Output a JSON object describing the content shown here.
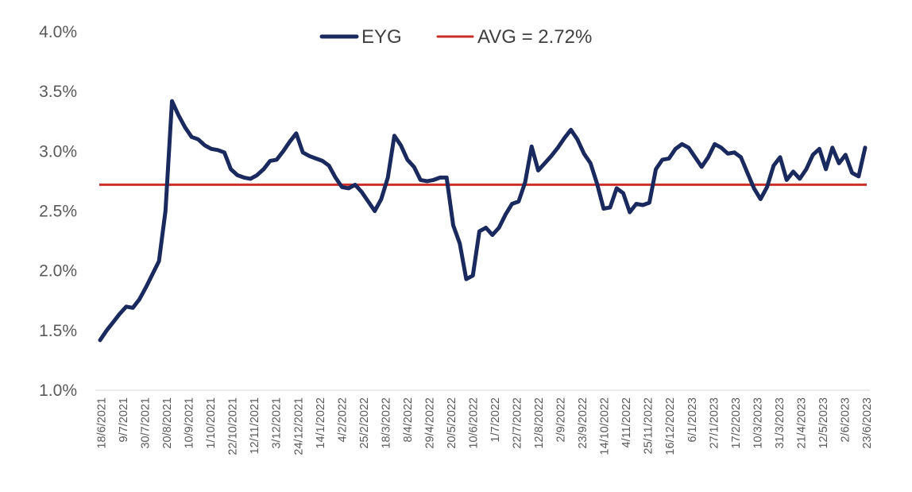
{
  "chart_data": {
    "type": "line",
    "title": "",
    "xlabel": "",
    "ylabel": "",
    "ylim": [
      1.0,
      4.0
    ],
    "grid": false,
    "legend_position": "top-center",
    "y_tick_labels": [
      "1.0%",
      "1.5%",
      "2.0%",
      "2.5%",
      "3.0%",
      "3.5%",
      "4.0%"
    ],
    "x_tick_labels": [
      "18/6/2021",
      "9/7/2021",
      "30/7/2021",
      "20/8/2021",
      "10/9/2021",
      "1/10/2021",
      "22/10/2021",
      "12/11/2021",
      "3/12/2021",
      "24/12/2021",
      "14/1/2022",
      "4/2/2022",
      "25/2/2022",
      "18/3/2022",
      "8/4/2022",
      "29/4/2022",
      "20/5/2022",
      "10/6/2022",
      "1/7/2022",
      "22/7/2022",
      "12/8/2022",
      "2/9/2022",
      "23/9/2022",
      "14/10/2022",
      "4/11/2022",
      "25/11/2022",
      "16/12/2022",
      "6/1/2023",
      "27/1/2023",
      "17/2/2023",
      "10/3/2023",
      "31/3/2023",
      "21/4/2023",
      "12/5/2023",
      "2/6/2023",
      "23/6/2023"
    ],
    "legend": [
      {
        "label": "EYG",
        "color": "#1b2a5e"
      },
      {
        "label": "AVG = 2.72%",
        "color": "#c9302c"
      }
    ],
    "series": [
      {
        "name": "EYG",
        "color": "#1b2a5e",
        "values": [
          1.42,
          1.5,
          1.57,
          1.64,
          1.7,
          1.69,
          1.76,
          1.86,
          1.97,
          2.08,
          2.5,
          3.42,
          3.3,
          3.2,
          3.12,
          3.1,
          3.05,
          3.02,
          3.01,
          2.99,
          2.85,
          2.8,
          2.78,
          2.77,
          2.8,
          2.85,
          2.92,
          2.93,
          3.0,
          3.08,
          3.15,
          2.99,
          2.96,
          2.94,
          2.92,
          2.88,
          2.78,
          2.7,
          2.69,
          2.72,
          2.66,
          2.58,
          2.5,
          2.6,
          2.78,
          3.13,
          3.05,
          2.93,
          2.87,
          2.76,
          2.75,
          2.76,
          2.78,
          2.78,
          2.38,
          2.23,
          1.93,
          1.96,
          2.33,
          2.36,
          2.3,
          2.36,
          2.47,
          2.56,
          2.58,
          2.74,
          3.04,
          2.84,
          2.9,
          2.96,
          3.03,
          3.11,
          3.18,
          3.1,
          2.98,
          2.9,
          2.73,
          2.52,
          2.53,
          2.69,
          2.65,
          2.49,
          2.56,
          2.55,
          2.57,
          2.85,
          2.93,
          2.94,
          3.02,
          3.06,
          3.03,
          2.95,
          2.87,
          2.95,
          3.06,
          3.03,
          2.98,
          2.99,
          2.95,
          2.82,
          2.69,
          2.6,
          2.7,
          2.88,
          2.95,
          2.76,
          2.83,
          2.77,
          2.85,
          2.97,
          3.02,
          2.85,
          3.03,
          2.9,
          2.97,
          2.82,
          2.79,
          3.03
        ]
      },
      {
        "name": "AVG = 2.72%",
        "color": "#c9302c",
        "constant": 2.72
      }
    ]
  }
}
